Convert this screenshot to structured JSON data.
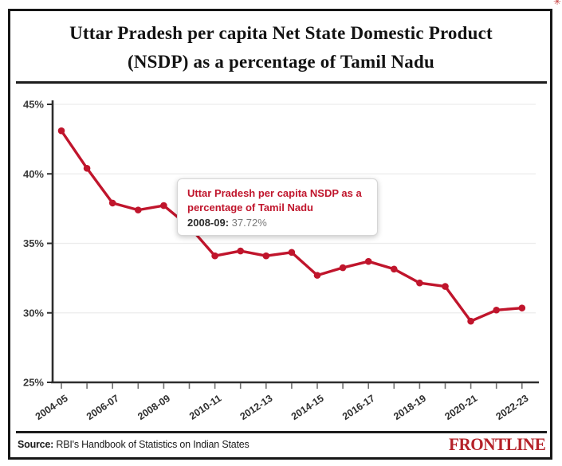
{
  "page": {
    "title_line1": "Uttar Pradesh per capita Net State Domestic Product",
    "title_line2": "(NSDP) as a percentage of Tamil Nadu"
  },
  "tooltip": {
    "title": "Uttar Pradesh per capita NSDP as a percentage of Tamil Nadu",
    "label": "2008-09:",
    "value": "37.72%"
  },
  "footer": {
    "source_label": "Source:",
    "source_text": "RBI's Handbook of Statistics on Indian States",
    "brand": "FRONTLINE"
  },
  "colors": {
    "line": "#c0152c",
    "axis": "#2d2d2d",
    "grid": "#ececec",
    "tick": "#6f6f6f",
    "brand_red": "#b5232a"
  },
  "chart_data": {
    "type": "line",
    "title": "Uttar Pradesh per capita Net State Domestic Product (NSDP) as a percentage of Tamil Nadu",
    "x": [
      "2004-05",
      "2005-06",
      "2006-07",
      "2007-08",
      "2008-09",
      "2009-10",
      "2010-11",
      "2011-12",
      "2012-13",
      "2013-14",
      "2014-15",
      "2015-16",
      "2016-17",
      "2017-18",
      "2018-19",
      "2019-20",
      "2020-21",
      "2021-22",
      "2022-23"
    ],
    "values": [
      43.1,
      40.4,
      37.9,
      37.4,
      37.72,
      36.2,
      34.1,
      34.45,
      34.1,
      34.35,
      32.7,
      33.25,
      33.7,
      33.15,
      32.15,
      31.9,
      29.4,
      30.2,
      30.35
    ],
    "label_every": 2,
    "y_ticks": [
      25,
      30,
      35,
      40,
      45
    ],
    "y_tick_labels": [
      "25%",
      "30%",
      "35%",
      "40%",
      "45%"
    ],
    "ylim": [
      25,
      45
    ],
    "grid": "horizontal gridlines at 30/35/40/45",
    "legend": "none",
    "highlighted_point": {
      "x": "2008-09",
      "value": 37.72
    }
  }
}
